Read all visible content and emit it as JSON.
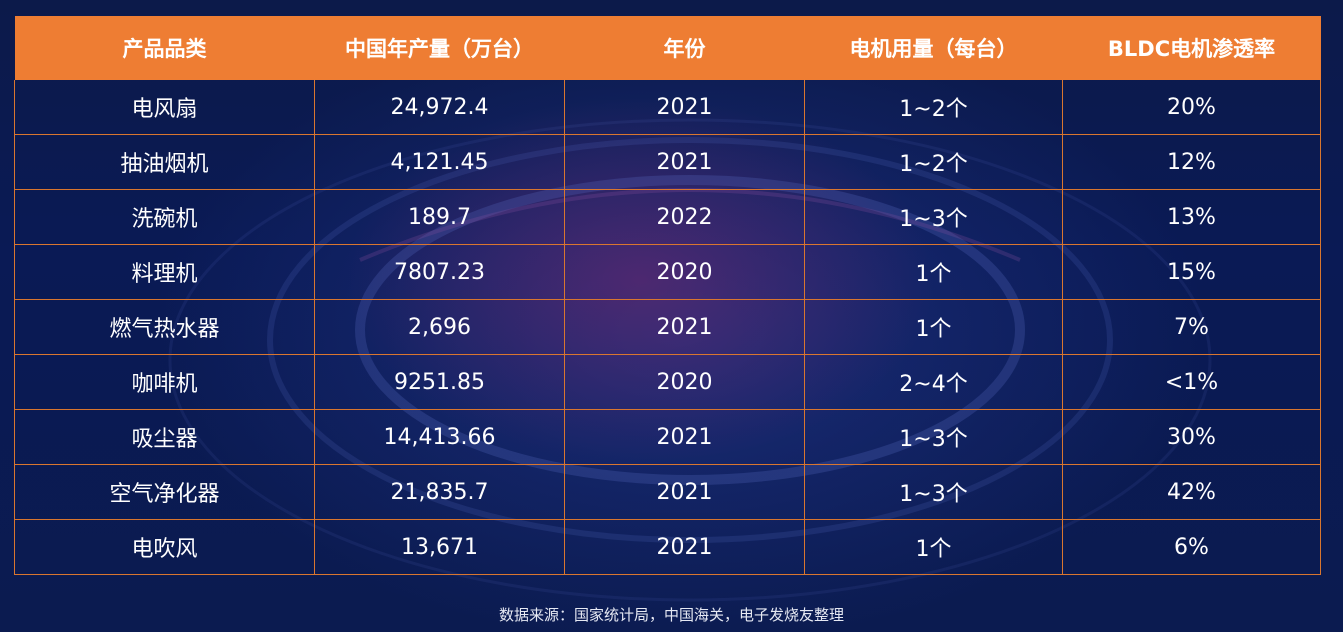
{
  "table": {
    "headers": [
      "产品品类",
      "中国年产量（万台）",
      "年份",
      "电机用量（每台）",
      "BLDC电机渗透率"
    ],
    "rows": [
      [
        "电风扇",
        "24,972.4",
        "2021",
        "1~2个",
        "20%"
      ],
      [
        "抽油烟机",
        "4,121.45",
        "2021",
        "1~2个",
        "12%"
      ],
      [
        "洗碗机",
        "189.7",
        "2022",
        "1~3个",
        "13%"
      ],
      [
        "料理机",
        "7807.23",
        "2020",
        "1个",
        "15%"
      ],
      [
        "燃气热水器",
        "2,696",
        "2021",
        "1个",
        "7%"
      ],
      [
        "咖啡机",
        "9251.85",
        "2020",
        "2~4个",
        "<1%"
      ],
      [
        "吸尘器",
        "14,413.66",
        "2021",
        "1~3个",
        "30%"
      ],
      [
        "空气净化器",
        "21,835.7",
        "2021",
        "1~3个",
        "42%"
      ],
      [
        "电吹风",
        "13,671",
        "2021",
        "1个",
        "6%"
      ]
    ]
  },
  "footer": {
    "source": "数据来源：国家统计局，中国海关，电子发烧友整理"
  },
  "colors": {
    "header_bg": "#ee7d33",
    "border": "#d9762f",
    "background": "#0b1b50",
    "text": "#ffffff"
  }
}
